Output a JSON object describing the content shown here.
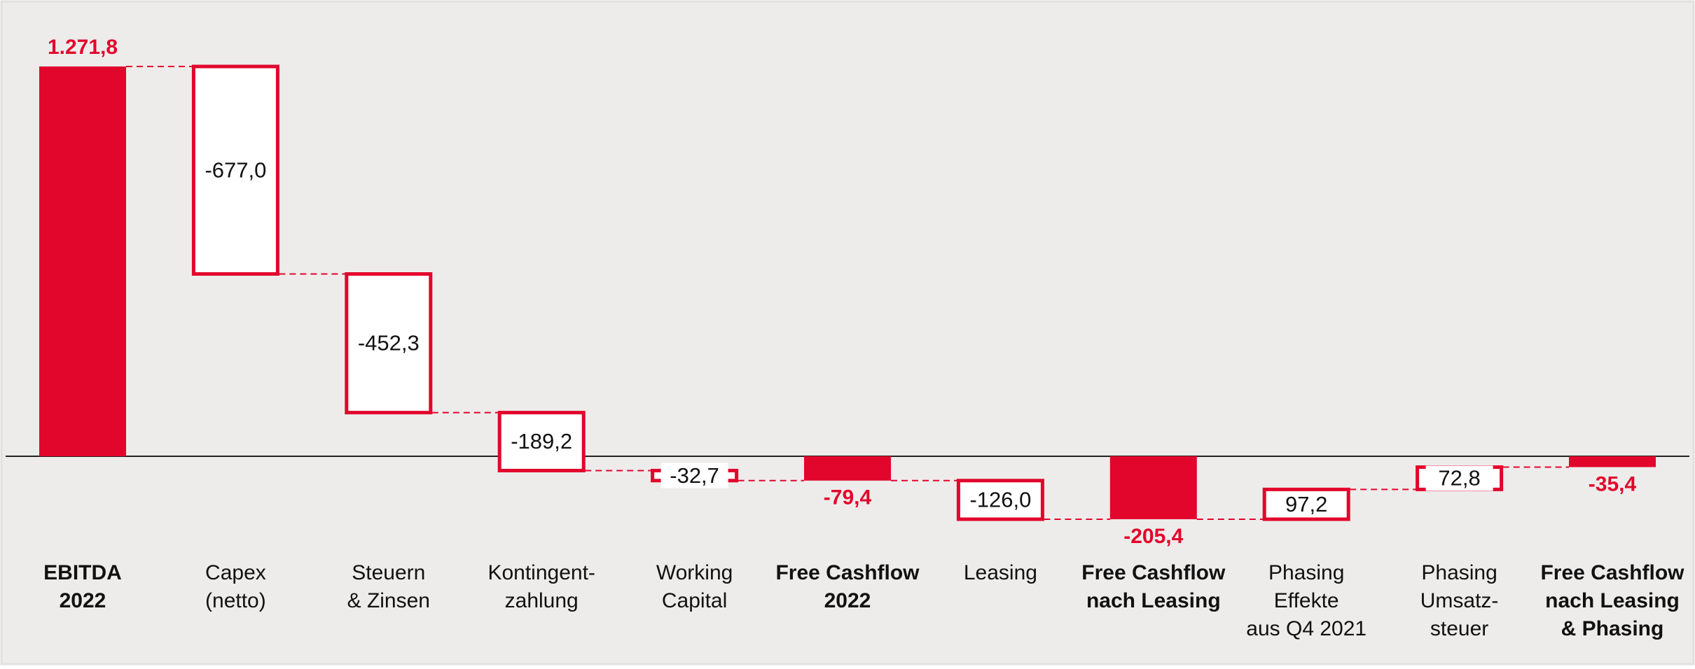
{
  "chart_data": {
    "type": "waterfall",
    "categories": [
      [
        "EBITDA",
        "2022"
      ],
      [
        "Capex",
        "(netto)"
      ],
      [
        "Steuern",
        "& Zinsen"
      ],
      [
        "Kontingent-",
        "zahlung"
      ],
      [
        "Working",
        "Capital"
      ],
      [
        "Free Cashflow",
        "2022"
      ],
      [
        "Leasing"
      ],
      [
        "Free Cashflow",
        "nach Leasing"
      ],
      [
        "Phasing",
        "Effekte",
        "aus Q4 2021"
      ],
      [
        "Phasing",
        "Umsatz-",
        "steuer"
      ],
      [
        "Free Cashflow",
        "nach Leasing",
        "& Phasing"
      ]
    ],
    "values": [
      1271.8,
      -677.0,
      -452.3,
      -189.2,
      -32.7,
      -79.4,
      -126.0,
      -205.4,
      97.2,
      72.8,
      -35.4
    ],
    "value_labels": [
      "1.271,8",
      "-677,0",
      "-452,3",
      "-189,2",
      "-32,7",
      "-79,4",
      "-126,0",
      "-205,4",
      "97,2",
      "72,8",
      "-35,4"
    ],
    "is_total": [
      true,
      false,
      false,
      false,
      false,
      true,
      false,
      true,
      false,
      false,
      true
    ],
    "total_color": "#e2062c",
    "step_fill": "#ffffff",
    "step_stroke": "#e2062c"
  }
}
